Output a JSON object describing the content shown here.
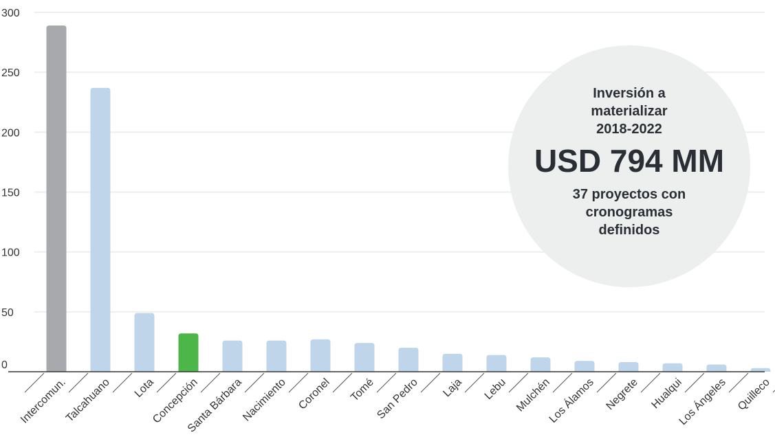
{
  "chart_data": {
    "type": "bar",
    "title": "",
    "xlabel": "",
    "ylabel": "",
    "ylim": [
      0,
      300
    ],
    "yticks": [
      0,
      50,
      100,
      150,
      200,
      250,
      300
    ],
    "grid": true,
    "categories": [
      "Intercomun.",
      "Talcahuano",
      "Lota",
      "Concepción",
      "Santa Bárbara",
      "Nacimiento",
      "Coronel",
      "Tomé",
      "San Pedro",
      "Laja",
      "Lebu",
      "Mulchén",
      "Los Álamos",
      "Negrete",
      "Hualqui",
      "Los Ángeles",
      "Quilleco"
    ],
    "values": [
      289,
      237,
      49,
      32,
      26,
      26,
      27,
      24,
      20,
      15,
      14,
      12,
      9,
      8,
      7,
      6,
      3
    ],
    "colors": {
      "default": "#bfd6ea",
      "highlight_intercomunal": "#a7a9ac",
      "highlight_concepcion": "#4cb748",
      "grid": "#eeeeee",
      "axis": "#333333"
    },
    "callout": {
      "line1": "Inversión a",
      "line2": "materializar",
      "line3": "2018-2022",
      "amount": "USD 794 MM",
      "sub1": "37 proyectos con",
      "sub2": "cronogramas",
      "sub3": "definidos"
    }
  }
}
